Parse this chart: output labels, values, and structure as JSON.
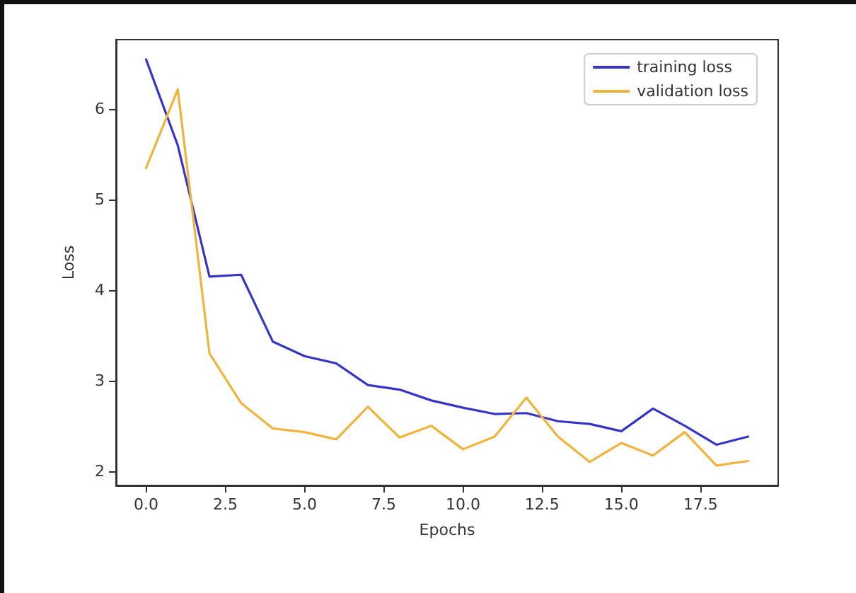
{
  "chart_data": {
    "type": "line",
    "xlabel": "Epochs",
    "ylabel": "Loss",
    "x": [
      0,
      1,
      2,
      3,
      4,
      5,
      6,
      7,
      8,
      9,
      10,
      11,
      12,
      13,
      14,
      15,
      16,
      17,
      18,
      19
    ],
    "series": [
      {
        "name": "training loss",
        "color": "#3535c8",
        "values": [
          6.55,
          5.6,
          4.15,
          4.17,
          3.43,
          3.27,
          3.19,
          2.95,
          2.9,
          2.78,
          2.7,
          2.63,
          2.64,
          2.55,
          2.52,
          2.44,
          2.69,
          2.5,
          2.29,
          2.38
        ]
      },
      {
        "name": "validation loss",
        "color": "#f0b43c",
        "values": [
          5.35,
          6.22,
          3.3,
          2.75,
          2.47,
          2.43,
          2.35,
          2.71,
          2.37,
          2.5,
          2.24,
          2.38,
          2.81,
          2.38,
          2.1,
          2.31,
          2.17,
          2.43,
          2.06,
          2.11
        ]
      }
    ],
    "xlim": [
      -0.95,
      19.95
    ],
    "xticks": [
      {
        "value": 0,
        "label": "0.0"
      },
      {
        "value": 2.5,
        "label": "2.5"
      },
      {
        "value": 5,
        "label": "5.0"
      },
      {
        "value": 7.5,
        "label": "7.5"
      },
      {
        "value": 10,
        "label": "10.0"
      },
      {
        "value": 12.5,
        "label": "12.5"
      },
      {
        "value": 15,
        "label": "15.0"
      },
      {
        "value": 17.5,
        "label": "17.5"
      }
    ],
    "ylim": [
      1.84,
      6.77
    ],
    "yticks": [
      2,
      3,
      4,
      5,
      6
    ],
    "grid": false,
    "legend": "top right",
    "marker": "none",
    "line_style": "solid"
  }
}
